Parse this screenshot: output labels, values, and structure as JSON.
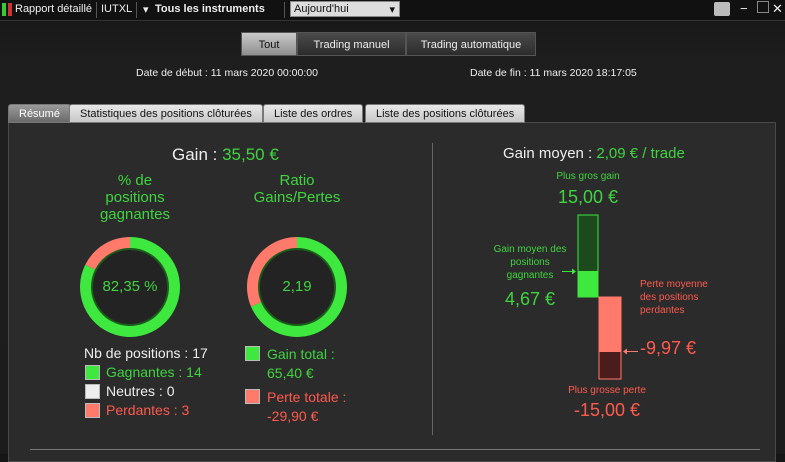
{
  "toolbar": {
    "report": "Rapport détaillé",
    "account": "IUTXL",
    "instruments": "Tous les instruments",
    "period": "Aujourd'hui"
  },
  "filters": {
    "buttons": [
      "Tout",
      "Trading manuel",
      "Trading automatique"
    ],
    "selected": 0
  },
  "dates": {
    "start_label": "Date de début :",
    "start": "11 mars 2020 00:00:00",
    "end_label": "Date de fin :",
    "end": "11 mars 2020 18:17:05"
  },
  "tabs": {
    "items": [
      "Résumé",
      "Statistiques des positions clôturées",
      "Liste des ordres",
      "Liste des positions clôturées"
    ],
    "selected": 0
  },
  "summary": {
    "gain_label": "Gain :",
    "gain": "35,50 €",
    "win_rate": {
      "title": "% de positions gagnantes",
      "label": "82,35 %"
    },
    "ratio": {
      "title": "Ratio Gains/Pertes",
      "label": "2,19"
    },
    "positions": {
      "label": "Nb de positions :",
      "total": 17,
      "winners": {
        "label": "Gagnantes :",
        "count": 14
      },
      "neutral": {
        "label": "Neutres :",
        "count": 0
      },
      "losers": {
        "label": "Perdantes :",
        "count": 3
      }
    },
    "totals": {
      "gain": {
        "label": "Gain total :",
        "value": 65.4,
        "value_label": "65,40 €"
      },
      "loss": {
        "label": "Perte totale :",
        "value": -29.9,
        "value_label": "-29,90 €"
      }
    },
    "average": {
      "label": "Gain moyen :",
      "value_label": "2,09 € / trade"
    },
    "max_gain": {
      "label": "Plus gros gain",
      "value": 15,
      "value_label": "15,00 €"
    },
    "avg_win": {
      "label": "Gain moyen des positions gagnantes",
      "value": 4.67,
      "value_label": "4,67 €"
    },
    "avg_loss": {
      "label": "Perte moyenne des positions perdantes",
      "value": -9.97,
      "value_label": "-9,97 €"
    },
    "max_loss": {
      "label": "Plus grosse perte",
      "value": -15,
      "value_label": "-15,00 €"
    }
  }
}
